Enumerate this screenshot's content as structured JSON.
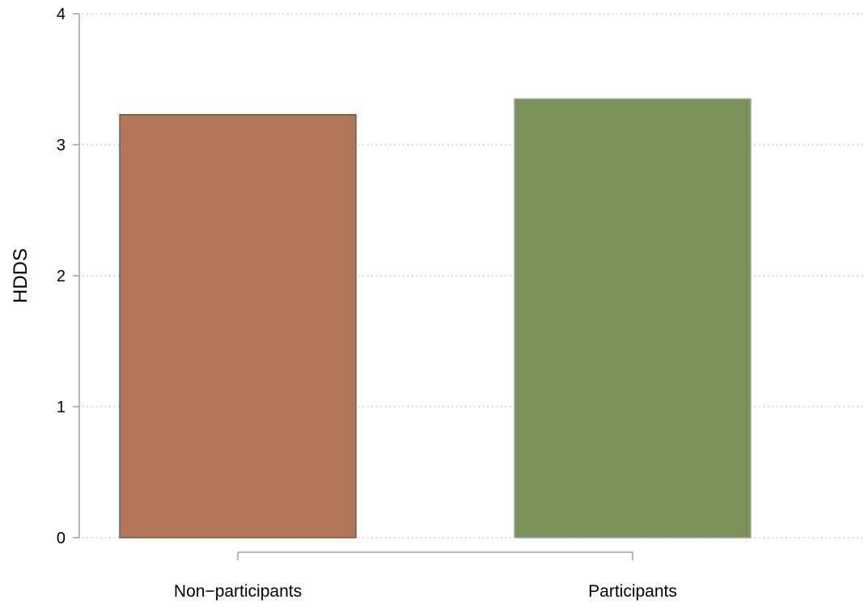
{
  "chart_data": {
    "type": "bar",
    "categories": [
      "Non−participants",
      "Participants"
    ],
    "values": [
      3.23,
      3.35
    ],
    "colors": [
      "#b07656",
      "#7a9159"
    ],
    "edge_colors": [
      "#6b5b52",
      "#a0a8a0"
    ],
    "title": "",
    "xlabel": "",
    "ylabel": "HDDS",
    "ylim": [
      0,
      4
    ],
    "yticks": [
      0,
      1,
      2,
      3,
      4
    ],
    "ytick_labels": [
      "0",
      "1",
      "2",
      "3",
      "4"
    ],
    "grid": true,
    "legend": "none"
  }
}
